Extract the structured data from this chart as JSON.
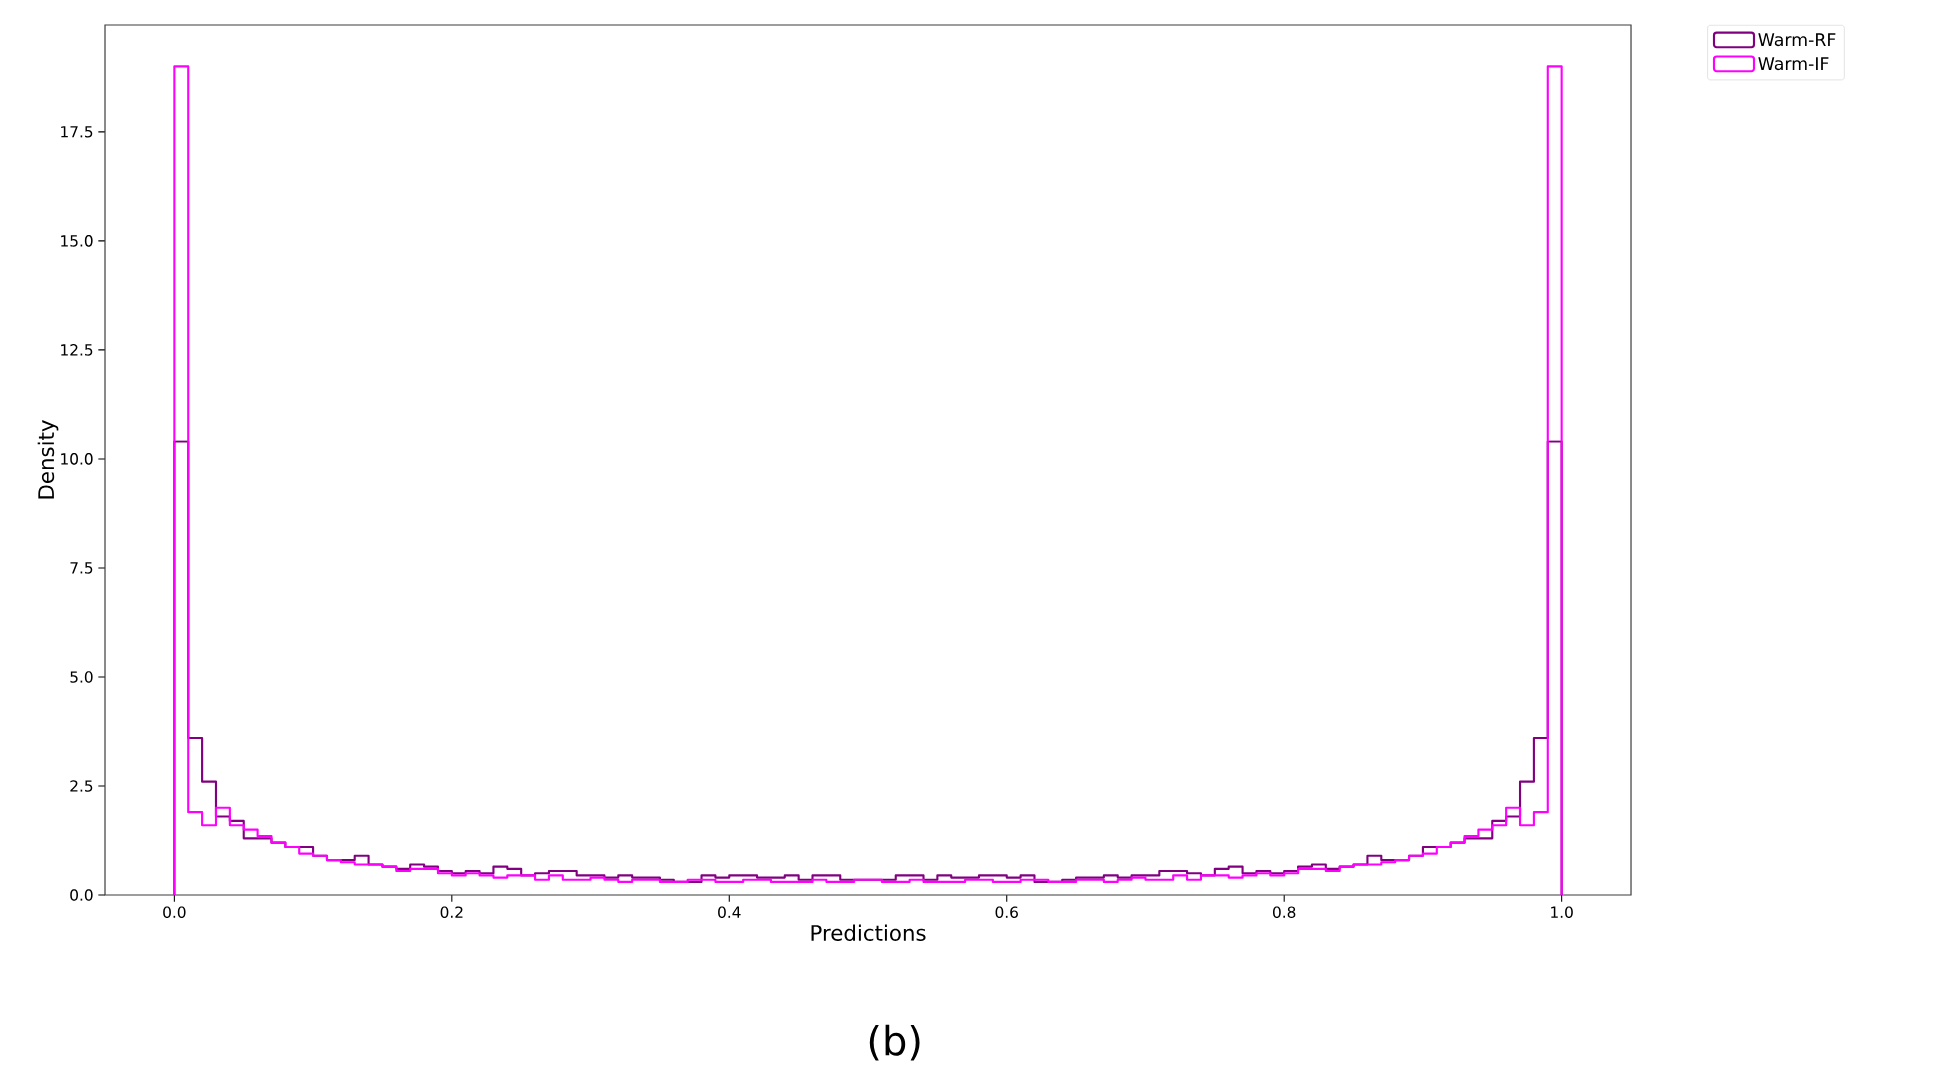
{
  "chart_data": {
    "type": "histogram",
    "xlabel": "Predictions",
    "ylabel": "Density",
    "annotations": [
      "(b)"
    ],
    "bins": [
      0.0,
      0.01,
      0.02,
      0.03,
      0.04,
      0.05,
      0.06,
      0.07,
      0.08,
      0.09,
      0.1,
      0.11,
      0.12,
      0.13,
      0.14,
      0.15,
      0.16,
      0.17,
      0.18,
      0.19,
      0.2,
      0.21,
      0.22,
      0.23,
      0.24,
      0.25,
      0.26,
      0.27,
      0.28,
      0.29,
      0.3,
      0.31,
      0.32,
      0.33,
      0.34,
      0.35,
      0.36,
      0.37,
      0.38,
      0.39,
      0.4,
      0.41,
      0.42,
      0.43,
      0.44,
      0.45,
      0.46,
      0.47,
      0.48,
      0.49,
      0.5,
      0.51,
      0.52,
      0.53,
      0.54,
      0.55,
      0.56,
      0.57,
      0.58,
      0.59,
      0.6,
      0.61,
      0.62,
      0.63,
      0.64,
      0.65,
      0.66,
      0.67,
      0.68,
      0.69,
      0.7,
      0.71,
      0.72,
      0.73,
      0.74,
      0.75,
      0.76,
      0.77,
      0.78,
      0.79,
      0.8,
      0.81,
      0.82,
      0.83,
      0.84,
      0.85,
      0.86,
      0.87,
      0.88,
      0.89,
      0.9,
      0.91,
      0.92,
      0.93,
      0.94,
      0.95,
      0.96,
      0.97,
      0.98,
      0.99,
      1.0
    ],
    "series": [
      {
        "name": "Warm-RF",
        "color": "#800080",
        "values": [
          10.4,
          3.6,
          2.6,
          1.8,
          1.7,
          1.3,
          1.3,
          1.2,
          1.1,
          1.1,
          0.9,
          0.8,
          0.8,
          0.9,
          0.7,
          0.65,
          0.6,
          0.7,
          0.65,
          0.55,
          0.5,
          0.55,
          0.5,
          0.65,
          0.6,
          0.45,
          0.5,
          0.55,
          0.55,
          0.45,
          0.45,
          0.4,
          0.45,
          0.4,
          0.4,
          0.35,
          0.3,
          0.3,
          0.45,
          0.4,
          0.45,
          0.45,
          0.4,
          0.4,
          0.45,
          0.35,
          0.45,
          0.45,
          0.35,
          0.35,
          0.35,
          0.35,
          0.45,
          0.45,
          0.35,
          0.45,
          0.4,
          0.4,
          0.45,
          0.45,
          0.4,
          0.45,
          0.3,
          0.3,
          0.35,
          0.4,
          0.4,
          0.45,
          0.4,
          0.45,
          0.45,
          0.55,
          0.55,
          0.5,
          0.45,
          0.6,
          0.65,
          0.5,
          0.55,
          0.5,
          0.55,
          0.65,
          0.7,
          0.6,
          0.65,
          0.7,
          0.9,
          0.8,
          0.8,
          0.9,
          1.1,
          1.1,
          1.2,
          1.3,
          1.3,
          1.7,
          1.8,
          2.6,
          3.6,
          10.4
        ]
      },
      {
        "name": "Warm-IF",
        "color": "#ff00ff",
        "values": [
          19.0,
          1.9,
          1.6,
          2.0,
          1.6,
          1.5,
          1.35,
          1.2,
          1.1,
          0.95,
          0.9,
          0.8,
          0.75,
          0.7,
          0.7,
          0.65,
          0.55,
          0.6,
          0.6,
          0.5,
          0.45,
          0.5,
          0.45,
          0.4,
          0.45,
          0.45,
          0.35,
          0.45,
          0.35,
          0.35,
          0.4,
          0.35,
          0.3,
          0.35,
          0.35,
          0.3,
          0.3,
          0.35,
          0.35,
          0.3,
          0.3,
          0.35,
          0.35,
          0.3,
          0.3,
          0.3,
          0.35,
          0.3,
          0.3,
          0.35,
          0.35,
          0.3,
          0.3,
          0.35,
          0.3,
          0.3,
          0.3,
          0.35,
          0.35,
          0.3,
          0.3,
          0.35,
          0.35,
          0.3,
          0.3,
          0.35,
          0.35,
          0.3,
          0.35,
          0.4,
          0.35,
          0.35,
          0.45,
          0.35,
          0.45,
          0.45,
          0.4,
          0.45,
          0.5,
          0.45,
          0.5,
          0.6,
          0.6,
          0.55,
          0.65,
          0.7,
          0.7,
          0.75,
          0.8,
          0.9,
          0.95,
          1.1,
          1.2,
          1.35,
          1.5,
          1.6,
          2.0,
          1.6,
          1.9,
          19.0
        ]
      }
    ],
    "xlim": [
      -0.05,
      1.05
    ],
    "ylim": [
      0,
      19.95
    ],
    "xticks": [
      {
        "value": 0,
        "label": "0.0"
      },
      0.2,
      0.4,
      0.6,
      0.8,
      {
        "value": 1,
        "label": "1.0"
      }
    ],
    "yticks": [
      {
        "value": 0,
        "label": "0.0"
      },
      2.5,
      {
        "value": 5,
        "label": "5.0"
      },
      7.5,
      {
        "value": 10,
        "label": "10.0"
      },
      12.5,
      {
        "value": 15,
        "label": "15.0"
      },
      17.5
    ],
    "legend": "top right"
  }
}
